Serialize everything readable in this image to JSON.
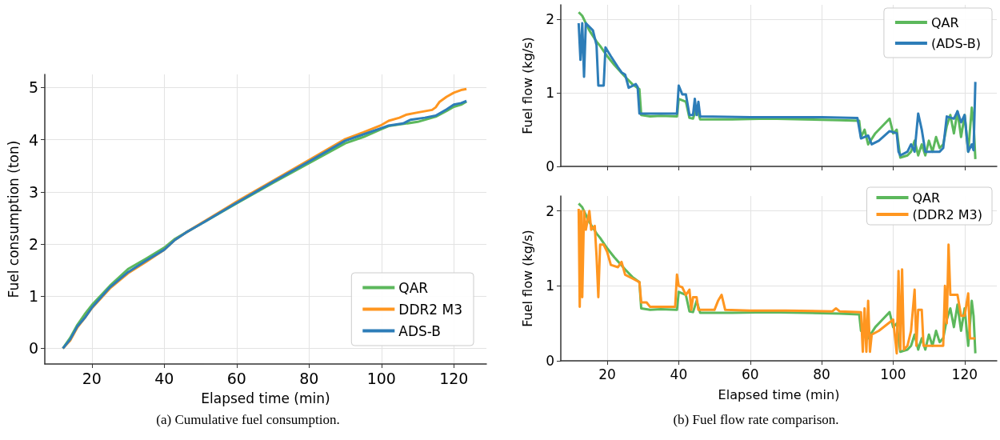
{
  "chart_data": [
    {
      "type": "line",
      "title": "(a) Cumulative fuel consumption.",
      "xlabel": "Elapsed time (min)",
      "ylabel": "Fuel consumption (ton)",
      "xlim": [
        7,
        129
      ],
      "xticks": [
        20,
        40,
        60,
        80,
        100,
        120
      ],
      "ylim": [
        -0.3,
        5.25
      ],
      "yticks": [
        0,
        1,
        2,
        3,
        4,
        5
      ],
      "grid": true,
      "legend": "bottom right",
      "series": [
        {
          "name": "QAR",
          "color": "#5cb85c",
          "x": [
            12,
            14,
            16,
            18,
            20,
            25,
            30,
            35,
            40,
            43,
            46,
            50,
            60,
            70,
            80,
            90,
            95,
            100,
            102,
            105,
            110,
            115,
            118,
            120,
            122,
            123.5
          ],
          "values": [
            0,
            0.2,
            0.45,
            0.65,
            0.83,
            1.2,
            1.52,
            1.72,
            1.93,
            2.1,
            2.22,
            2.38,
            2.78,
            3.17,
            3.55,
            3.93,
            4.05,
            4.2,
            4.26,
            4.29,
            4.34,
            4.44,
            4.55,
            4.63,
            4.67,
            4.73
          ]
        },
        {
          "name": "DDR2 M3",
          "color": "#ff9620",
          "x": [
            12,
            14,
            16,
            18,
            20,
            25,
            30,
            35,
            40,
            43,
            46,
            50,
            60,
            70,
            80,
            90,
            95,
            100,
            102,
            105,
            107,
            110,
            114,
            115,
            116,
            118,
            120,
            122,
            123.5
          ],
          "values": [
            0,
            0.15,
            0.4,
            0.58,
            0.77,
            1.15,
            1.44,
            1.66,
            1.89,
            2.08,
            2.22,
            2.39,
            2.81,
            3.21,
            3.61,
            4.01,
            4.14,
            4.28,
            4.36,
            4.42,
            4.48,
            4.52,
            4.57,
            4.62,
            4.72,
            4.82,
            4.9,
            4.95,
            4.97
          ]
        },
        {
          "name": "ADS-B",
          "color": "#2d7db8",
          "x": [
            12,
            14,
            16,
            18,
            20,
            25,
            30,
            35,
            40,
            43,
            46,
            50,
            60,
            70,
            80,
            90,
            95,
            100,
            102,
            106,
            108,
            112,
            115,
            118,
            120,
            122,
            123.5
          ],
          "values": [
            0,
            0.17,
            0.42,
            0.58,
            0.78,
            1.17,
            1.46,
            1.68,
            1.89,
            2.08,
            2.22,
            2.38,
            2.79,
            3.19,
            3.58,
            3.98,
            4.1,
            4.22,
            4.27,
            4.31,
            4.38,
            4.42,
            4.46,
            4.58,
            4.67,
            4.7,
            4.74
          ]
        }
      ]
    },
    {
      "type": "line",
      "ylabel": "Fuel flow (kg/s)",
      "xlim": [
        7,
        129
      ],
      "xticks": [
        {
          "value": 20,
          "label": null
        },
        {
          "value": 40,
          "label": null
        },
        {
          "value": 60,
          "label": null
        },
        {
          "value": 80,
          "label": null
        },
        {
          "value": 100,
          "label": null
        },
        {
          "value": 120,
          "label": null
        }
      ],
      "ylim": [
        0,
        2.2
      ],
      "yticks": [
        0,
        1,
        2
      ],
      "grid": true,
      "legend": "top right",
      "tick_labels": "y",
      "series": [
        {
          "name": "QAR",
          "color": "#5cb85c",
          "x": [
            12,
            13,
            15,
            17,
            18,
            20,
            22,
            25,
            27,
            29,
            29.5,
            32,
            35,
            39.5,
            40,
            42,
            43,
            44,
            45,
            46,
            55,
            65,
            75,
            85,
            90.5,
            91,
            92,
            93,
            95,
            97,
            99,
            100,
            101,
            101.5,
            102,
            104,
            105,
            106,
            107,
            108,
            109,
            110,
            111,
            112,
            113,
            114,
            115,
            116,
            117,
            118,
            119,
            120,
            121,
            122,
            122.5,
            123
          ],
          "values": [
            2.1,
            2.05,
            1.85,
            1.7,
            1.64,
            1.5,
            1.38,
            1.22,
            1.12,
            1.05,
            0.7,
            0.68,
            0.69,
            0.68,
            0.92,
            0.88,
            0.66,
            0.65,
            0.8,
            0.64,
            0.64,
            0.65,
            0.64,
            0.63,
            0.62,
            0.4,
            0.5,
            0.3,
            0.45,
            0.55,
            0.65,
            0.45,
            0.5,
            0.3,
            0.12,
            0.15,
            0.2,
            0.35,
            0.15,
            0.3,
            0.15,
            0.35,
            0.2,
            0.4,
            0.25,
            0.3,
            0.55,
            0.7,
            0.45,
            0.75,
            0.4,
            0.7,
            0.2,
            0.8,
            0.6,
            0.1
          ]
        },
        {
          "name": "(ADS-B)",
          "color": "#2d7db8",
          "x": [
            12,
            12.5,
            13,
            13.5,
            14,
            16,
            17,
            17.5,
            19,
            19.5,
            21,
            23,
            24,
            25,
            26,
            28,
            28.5,
            29,
            35,
            39.5,
            40,
            41,
            42,
            43,
            44,
            44.5,
            45,
            45.5,
            46,
            60,
            80,
            90,
            91,
            93,
            94,
            96,
            99,
            101,
            101.5,
            102,
            104,
            105,
            106,
            107,
            108,
            109,
            113,
            114,
            115,
            117,
            118,
            119,
            120,
            121,
            122,
            122.5,
            123
          ],
          "values": [
            1.95,
            1.45,
            1.95,
            1.22,
            1.95,
            1.85,
            1.65,
            1.1,
            1.1,
            1.62,
            1.5,
            1.35,
            1.28,
            1.25,
            1.07,
            1.12,
            1.08,
            0.72,
            0.72,
            0.72,
            1.1,
            0.98,
            0.98,
            0.7,
            0.7,
            0.92,
            0.7,
            0.88,
            0.68,
            0.67,
            0.67,
            0.66,
            0.38,
            0.42,
            0.3,
            0.35,
            0.48,
            0.45,
            0.2,
            0.15,
            0.2,
            0.3,
            0.2,
            0.72,
            0.5,
            0.2,
            0.2,
            0.25,
            0.68,
            0.65,
            0.75,
            0.6,
            0.7,
            0.2,
            0.3,
            0.22,
            1.15
          ]
        }
      ]
    },
    {
      "type": "line",
      "title": "(b) Fuel flow rate comparison.",
      "xlabel": "Elapsed time (min)",
      "ylabel": "Fuel flow (kg/s)",
      "xlim": [
        7,
        129
      ],
      "xticks": [
        20,
        40,
        60,
        80,
        100,
        120
      ],
      "ylim": [
        0,
        2.2
      ],
      "yticks": [
        0,
        1,
        2
      ],
      "grid": true,
      "legend": "top right",
      "series": [
        {
          "name": "QAR",
          "color": "#5cb85c",
          "x": [
            12,
            13,
            15,
            17,
            18,
            20,
            22,
            25,
            27,
            29,
            29.5,
            32,
            35,
            39.5,
            40,
            42,
            43,
            44,
            45,
            46,
            55,
            65,
            75,
            85,
            90.5,
            91,
            92,
            93,
            95,
            97,
            99,
            100,
            101,
            101.5,
            102,
            104,
            105,
            106,
            107,
            108,
            109,
            110,
            111,
            112,
            113,
            114,
            115,
            116,
            117,
            118,
            119,
            120,
            121,
            122,
            122.5,
            123
          ],
          "values": [
            2.1,
            2.05,
            1.85,
            1.7,
            1.64,
            1.5,
            1.38,
            1.22,
            1.12,
            1.05,
            0.7,
            0.68,
            0.69,
            0.68,
            0.92,
            0.88,
            0.66,
            0.65,
            0.8,
            0.64,
            0.64,
            0.65,
            0.64,
            0.63,
            0.62,
            0.4,
            0.5,
            0.3,
            0.45,
            0.55,
            0.65,
            0.45,
            0.5,
            0.3,
            0.12,
            0.15,
            0.2,
            0.35,
            0.15,
            0.3,
            0.15,
            0.35,
            0.2,
            0.4,
            0.25,
            0.3,
            0.55,
            0.7,
            0.45,
            0.75,
            0.4,
            0.7,
            0.2,
            0.8,
            0.6,
            0.1
          ]
        },
        {
          "name": "(DDR2 M3)",
          "color": "#ff9620",
          "x": [
            12,
            12.3,
            12.7,
            13,
            13.5,
            14,
            15,
            15.5,
            16.5,
            17,
            17.5,
            18,
            19,
            20,
            21,
            23,
            24,
            25,
            27,
            29,
            29.5,
            31,
            32,
            39,
            39.5,
            40,
            41,
            42,
            43,
            43.5,
            44,
            45,
            45.5,
            50,
            51,
            52,
            53,
            60,
            70,
            83,
            84,
            85,
            91,
            91.5,
            92,
            92.5,
            93,
            93.5,
            94,
            96,
            100,
            101,
            101.5,
            102,
            102.5,
            103,
            104,
            105,
            106,
            106.5,
            107,
            108,
            108.5,
            110,
            114,
            114.5,
            115,
            115.5,
            116,
            118,
            119,
            120,
            121,
            121.5,
            123
          ],
          "values": [
            2.03,
            0.72,
            2.0,
            0.85,
            2.0,
            1.75,
            2.0,
            1.75,
            1.8,
            1.4,
            0.85,
            1.55,
            1.55,
            1.45,
            1.28,
            1.25,
            1.32,
            1.15,
            1.1,
            1.05,
            0.78,
            0.78,
            0.72,
            0.72,
            1.15,
            1.0,
            0.98,
            0.88,
            0.95,
            0.68,
            0.85,
            0.85,
            0.68,
            0.68,
            0.8,
            0.88,
            0.68,
            0.67,
            0.67,
            0.66,
            0.7,
            0.66,
            0.65,
            0.12,
            0.7,
            0.12,
            0.8,
            0.12,
            0.35,
            0.4,
            0.55,
            0.1,
            1.2,
            0.15,
            1.22,
            0.15,
            0.2,
            0.4,
            0.95,
            0.2,
            0.68,
            0.68,
            0.2,
            0.2,
            0.2,
            1.0,
            0.5,
            1.55,
            0.88,
            0.88,
            0.6,
            0.6,
            0.9,
            0.3,
            0.3
          ]
        }
      ]
    }
  ]
}
